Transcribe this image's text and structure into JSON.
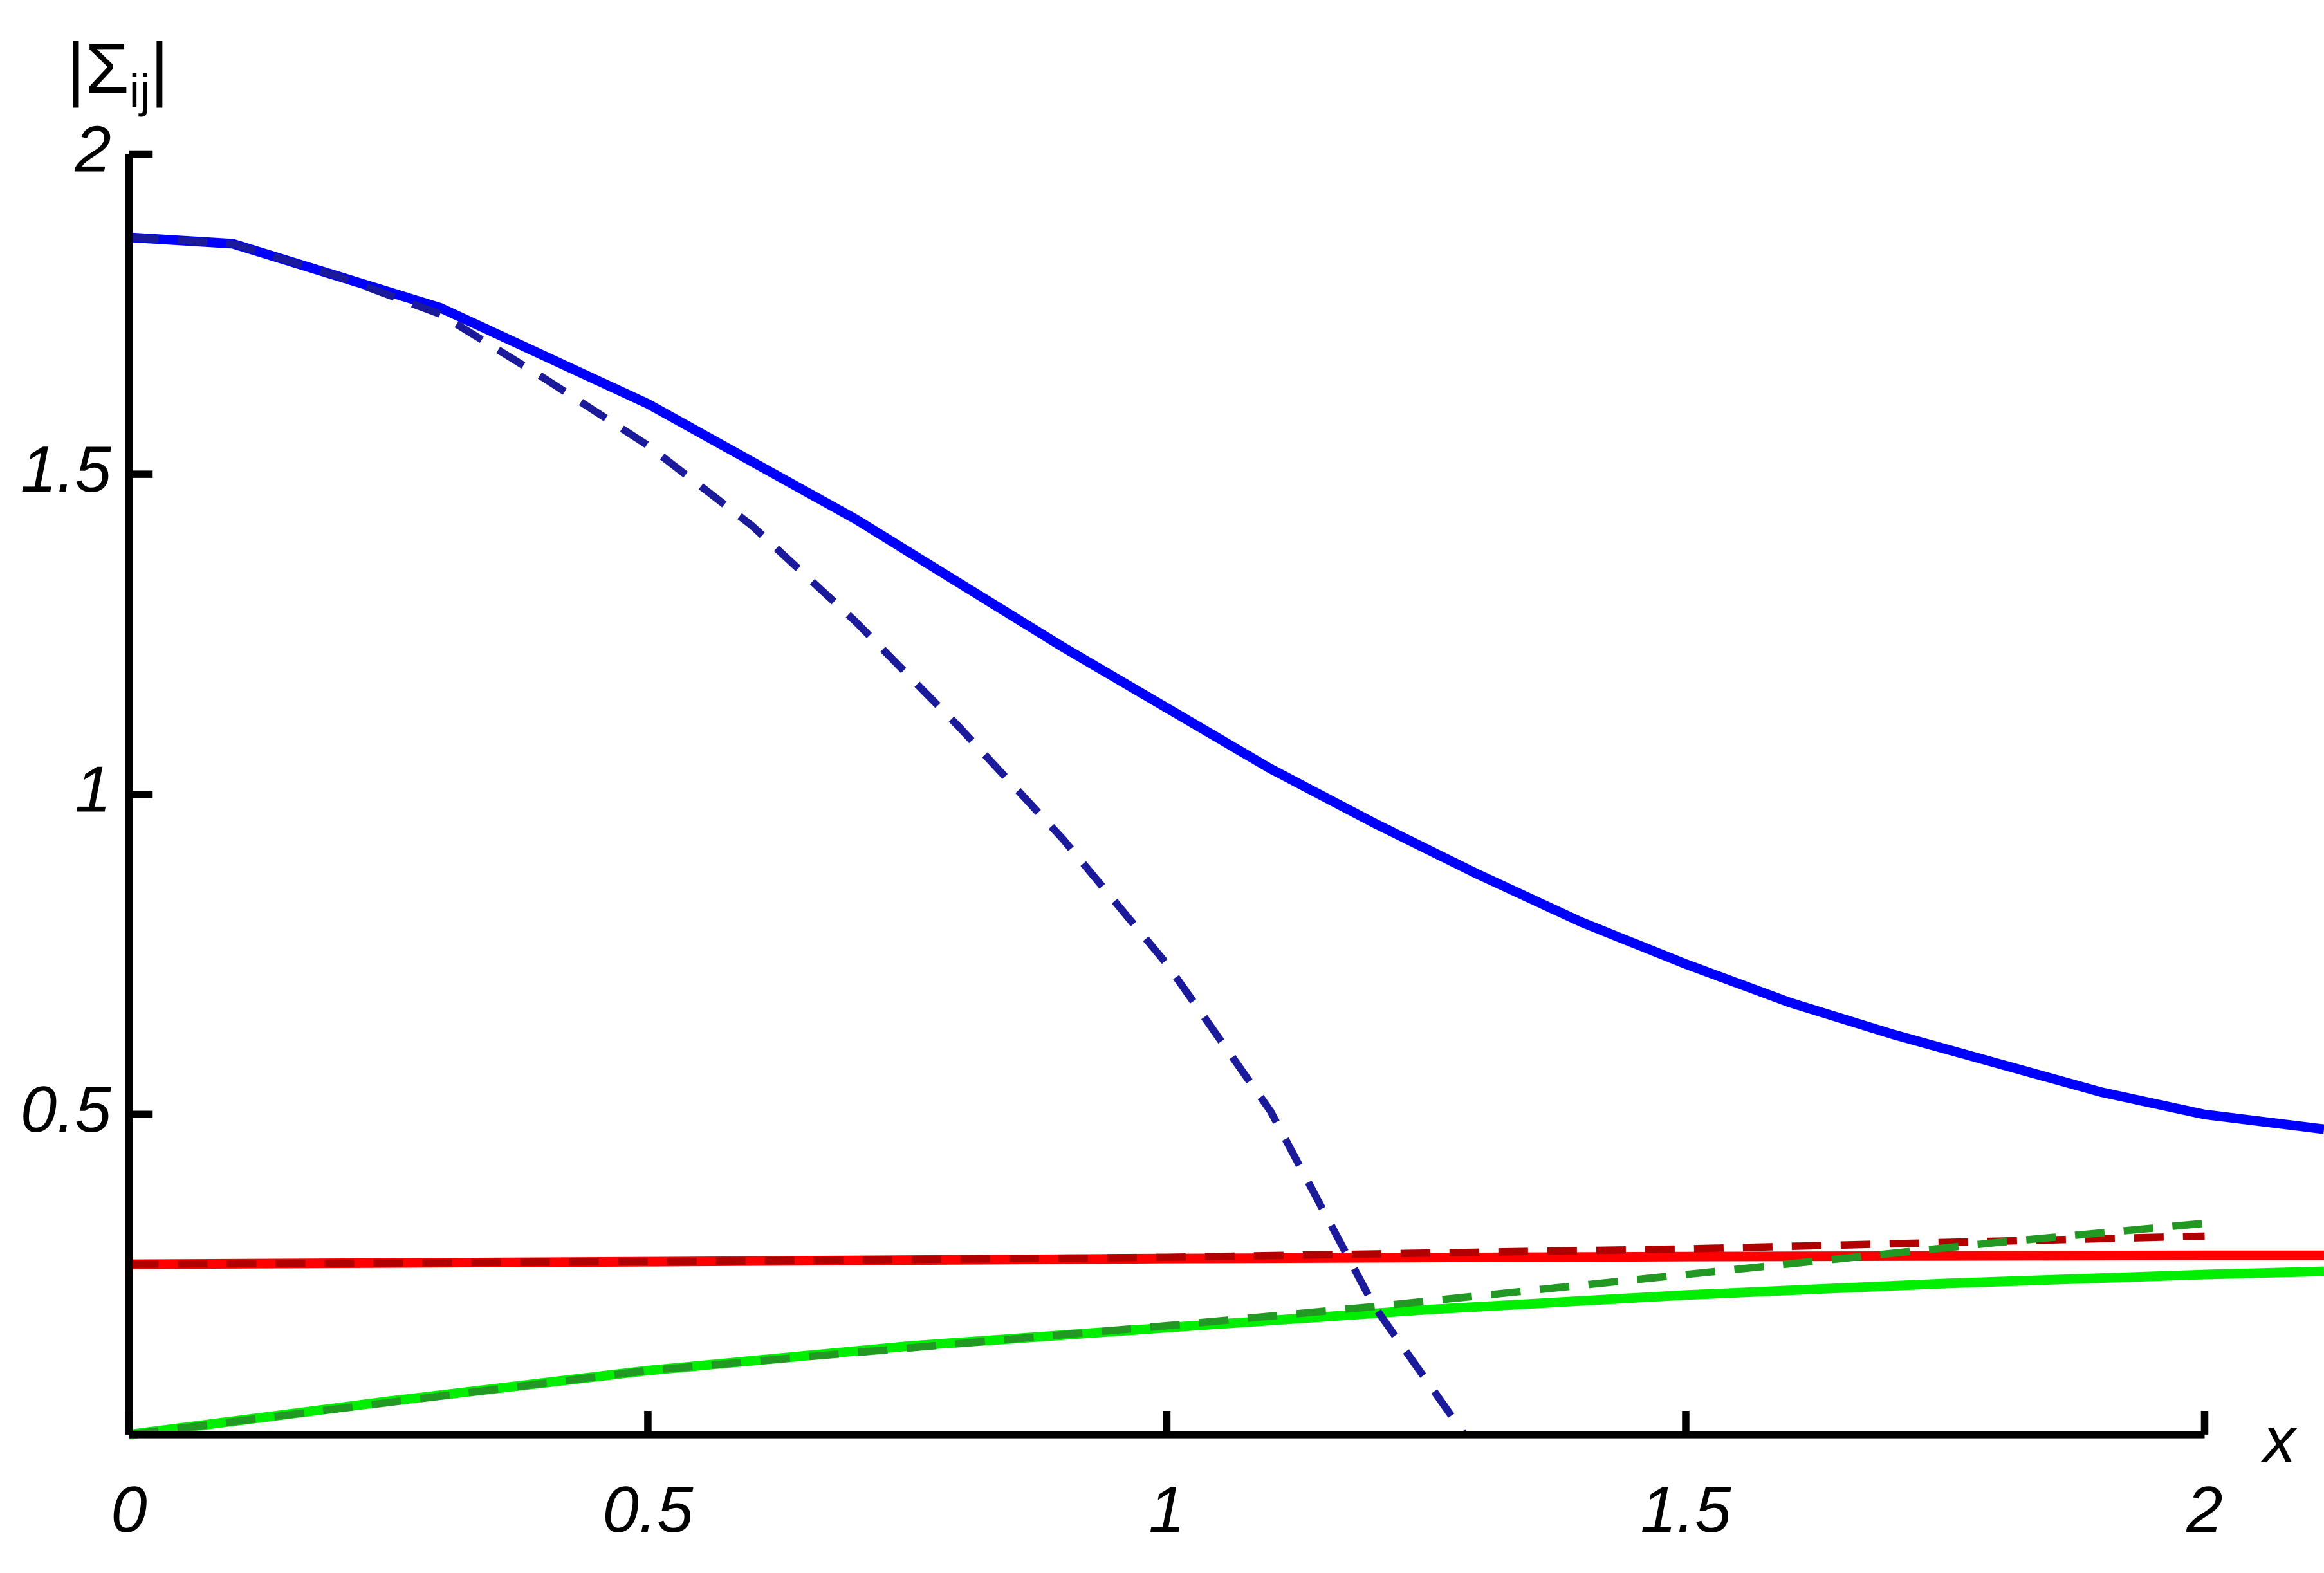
{
  "chart_data": {
    "type": "line",
    "ylabel_parts": [
      "|Σ",
      "ij",
      "|"
    ],
    "xlabel": "x",
    "xlim": [
      0,
      2.115
    ],
    "ylim": [
      0,
      2
    ],
    "xticks": [
      0,
      0.5,
      1,
      1.5,
      2
    ],
    "yticks": [
      0.5,
      1,
      1.5,
      2
    ],
    "series": [
      {
        "color": "#0000ff",
        "dashed": false,
        "x": [
          0,
          0.1,
          0.2,
          0.3,
          0.4,
          0.5,
          0.6,
          0.7,
          0.8,
          0.9,
          1.0,
          1.1,
          1.2,
          1.3,
          1.4,
          1.5,
          1.6,
          1.7,
          1.8,
          1.9,
          2.0,
          2.115
        ],
        "values": [
          1.87,
          1.86,
          1.81,
          1.76,
          1.685,
          1.61,
          1.52,
          1.43,
          1.33,
          1.23,
          1.135,
          1.04,
          0.955,
          0.875,
          0.8,
          0.735,
          0.675,
          0.625,
          0.58,
          0.535,
          0.5,
          0.477
        ]
      },
      {
        "color": "#ff0000",
        "dashed": false,
        "x": [
          0,
          0.5,
          1,
          1.5,
          2,
          2.115
        ],
        "values": [
          0.266,
          0.27,
          0.275,
          0.278,
          0.28,
          0.28
        ]
      },
      {
        "color": "#00ee00",
        "dashed": false,
        "x": [
          0,
          0.25,
          0.5,
          0.75,
          1,
          1.25,
          1.5,
          1.75,
          2,
          2.115
        ],
        "values": [
          0,
          0.052,
          0.1,
          0.138,
          0.167,
          0.195,
          0.218,
          0.236,
          0.25,
          0.255
        ]
      },
      {
        "color": "#1a1a9a",
        "dashed": true,
        "x": [
          0,
          0.1,
          0.2,
          0.3,
          0.4,
          0.5,
          0.6,
          0.7,
          0.8,
          0.9,
          1.0,
          1.1,
          1.2,
          1.287
        ],
        "values": [
          1.87,
          1.86,
          1.81,
          1.75,
          1.65,
          1.545,
          1.42,
          1.27,
          1.105,
          0.93,
          0.735,
          0.505,
          0.2,
          0
        ]
      },
      {
        "color": "#b00000",
        "dashed": true,
        "x": [
          0,
          0.5,
          1,
          1.5,
          2
        ],
        "values": [
          0.266,
          0.27,
          0.277,
          0.29,
          0.31
        ]
      },
      {
        "color": "#229922",
        "dashed": true,
        "x": [
          0,
          0.5,
          1,
          1.2,
          1.5,
          1.8,
          2
        ],
        "values": [
          0,
          0.1,
          0.17,
          0.2,
          0.25,
          0.3,
          0.33
        ]
      }
    ]
  }
}
